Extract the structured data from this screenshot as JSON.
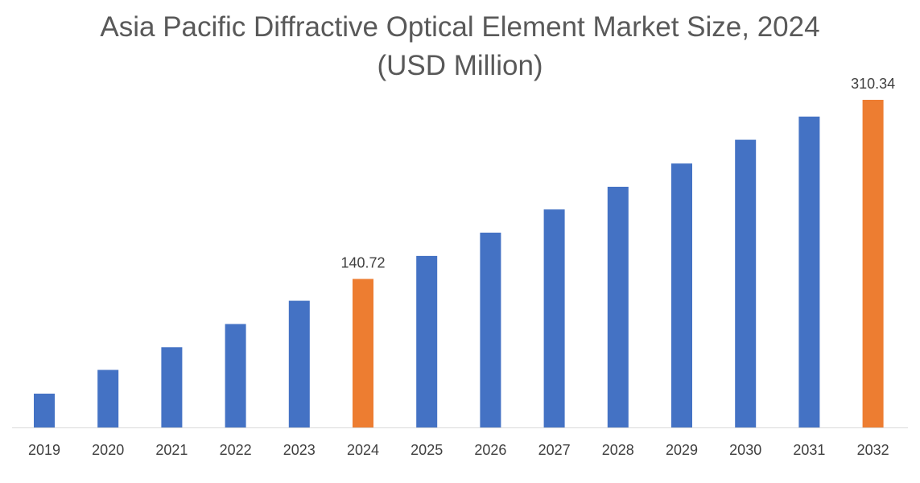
{
  "chart_data": {
    "type": "bar",
    "title_line1": "Asia Pacific Diffractive Optical Element Market Size, 2024",
    "title_line2": "(USD Million)",
    "xlabel": "",
    "ylabel": "",
    "categories": [
      "2019",
      "2020",
      "2021",
      "2022",
      "2023",
      "2024",
      "2025",
      "2026",
      "2027",
      "2028",
      "2029",
      "2030",
      "2031",
      "2032"
    ],
    "values": [
      32.0,
      54.5,
      76.0,
      98.0,
      120.0,
      140.72,
      162.5,
      184.5,
      206.5,
      228.0,
      250.0,
      272.5,
      294.5,
      310.34
    ],
    "data_labels": [
      "",
      "",
      "",
      "",
      "",
      "140.72",
      "",
      "",
      "",
      "",
      "",
      "",
      "",
      "310.34"
    ],
    "highlighted": [
      false,
      false,
      false,
      false,
      false,
      true,
      false,
      false,
      false,
      false,
      false,
      false,
      false,
      true
    ],
    "ylim": [
      0,
      310.34
    ],
    "grid": false,
    "legend": "none",
    "colors": {
      "bar": "#4472C4",
      "highlight": "#ED7D31",
      "axis": "#D9D9D9"
    }
  }
}
